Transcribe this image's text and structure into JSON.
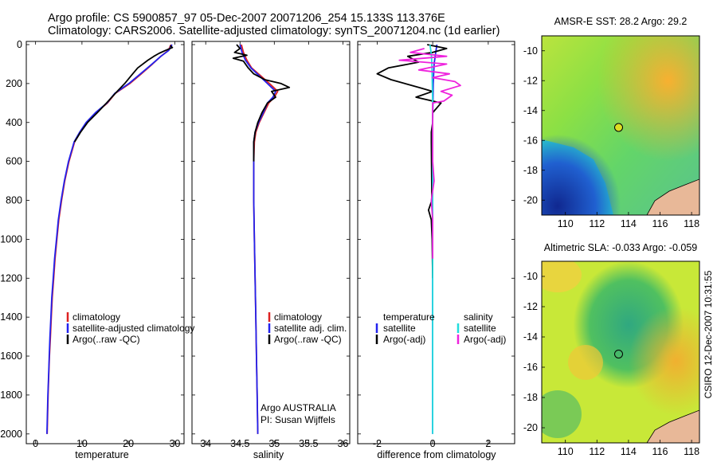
{
  "figure": {
    "title_line1": "Argo profile: CS 5900857_97 05-Dec-2007 20071206_254 15.133S 113.376E",
    "title_line2": "Climatology: CARS2006. Satellite-adjusted climatology: synTS_20071204.nc (1d earlier)",
    "side_label": "CSIRO 12-Dec-2007 10:31:55",
    "credit_line1": "Argo AUSTRALIA",
    "credit_line2": "PI: Susan Wijffels"
  },
  "colors": {
    "climatology": "#dd2222",
    "satellite": "#2222ee",
    "argo": "#000000",
    "sat_salinity": "#22dddd",
    "argo_salinity": "#ee22dd",
    "marker": "#dddd22",
    "land": "#e8b898"
  },
  "chart_data": [
    {
      "id": "temperature",
      "type": "line",
      "xlabel": "temperature",
      "ylabel": "",
      "xlim": [
        -2,
        32
      ],
      "ylim": [
        2050,
        0
      ],
      "xticks": [
        "0",
        "10",
        "20",
        "30"
      ],
      "xtick_values": [
        0,
        10,
        20,
        30
      ],
      "yticks": [
        "0",
        "200",
        "400",
        "600",
        "800",
        "1000",
        "1200",
        "1400",
        "1600",
        "1800",
        "2000"
      ],
      "ytick_values": [
        0,
        200,
        400,
        600,
        800,
        1000,
        1200,
        1400,
        1600,
        1800,
        2000
      ],
      "legend": [
        "climatology",
        "satellite-adjusted climatology",
        "Argo(..raw -QC)"
      ],
      "series": [
        {
          "name": "climatology",
          "color_key": "climatology",
          "points": [
            [
              29.2,
              0
            ],
            [
              28.6,
              30
            ],
            [
              27.0,
              60
            ],
            [
              25.2,
              100
            ],
            [
              22.8,
              150
            ],
            [
              20.3,
              200
            ],
            [
              17.2,
              250
            ],
            [
              15.5,
              300
            ],
            [
              13.0,
              350
            ],
            [
              11.0,
              400
            ],
            [
              9.6,
              450
            ],
            [
              8.4,
              500
            ],
            [
              7.2,
              600
            ],
            [
              6.3,
              700
            ],
            [
              5.6,
              800
            ],
            [
              5.0,
              900
            ],
            [
              4.6,
              1000
            ],
            [
              4.2,
              1100
            ],
            [
              3.9,
              1200
            ],
            [
              3.6,
              1300
            ],
            [
              3.4,
              1400
            ],
            [
              3.2,
              1500
            ],
            [
              3.0,
              1600
            ],
            [
              2.85,
              1700
            ],
            [
              2.7,
              1800
            ],
            [
              2.6,
              1900
            ],
            [
              2.5,
              2000
            ]
          ]
        },
        {
          "name": "satellite",
          "color_key": "satellite",
          "points": [
            [
              29.4,
              0
            ],
            [
              28.7,
              30
            ],
            [
              27.0,
              60
            ],
            [
              25.1,
              100
            ],
            [
              22.6,
              150
            ],
            [
              20.1,
              200
            ],
            [
              17.1,
              250
            ],
            [
              15.4,
              300
            ],
            [
              12.9,
              350
            ],
            [
              10.9,
              400
            ],
            [
              9.5,
              450
            ],
            [
              8.3,
              500
            ],
            [
              7.1,
              600
            ],
            [
              6.2,
              700
            ],
            [
              5.5,
              800
            ],
            [
              4.9,
              900
            ],
            [
              4.5,
              1000
            ],
            [
              4.1,
              1100
            ],
            [
              3.8,
              1200
            ],
            [
              3.5,
              1300
            ],
            [
              3.3,
              1400
            ],
            [
              3.1,
              1500
            ],
            [
              2.95,
              1600
            ],
            [
              2.8,
              1700
            ],
            [
              2.65,
              1800
            ],
            [
              2.55,
              1900
            ],
            [
              2.45,
              2000
            ]
          ]
        },
        {
          "name": "argo",
          "color_key": "argo",
          "points": [
            [
              29.0,
              5
            ],
            [
              29.5,
              15
            ],
            [
              28.0,
              30
            ],
            [
              26.6,
              45
            ],
            [
              25.5,
              60
            ],
            [
              24.2,
              80
            ],
            [
              22.0,
              120
            ],
            [
              20.6,
              160
            ],
            [
              19.2,
              200
            ],
            [
              17.2,
              250
            ],
            [
              15.3,
              300
            ],
            [
              13.3,
              350
            ],
            [
              11.2,
              400
            ],
            [
              9.7,
              450
            ],
            [
              8.4,
              500
            ]
          ]
        }
      ]
    },
    {
      "id": "salinity",
      "type": "line",
      "xlabel": "salinity",
      "xlim": [
        33.8,
        36.1
      ],
      "ylim": [
        2050,
        0
      ],
      "xticks": [
        "34",
        "34.5",
        "35",
        "35.5",
        "36"
      ],
      "xtick_values": [
        34,
        34.5,
        35,
        35.5,
        36
      ],
      "legend": [
        "climatology",
        "satellite adj. clim.",
        "Argo(..raw -QC)"
      ],
      "series": [
        {
          "name": "climatology",
          "color_key": "climatology",
          "points": [
            [
              34.52,
              0
            ],
            [
              34.55,
              40
            ],
            [
              34.6,
              80
            ],
            [
              34.67,
              120
            ],
            [
              34.8,
              160
            ],
            [
              34.93,
              200
            ],
            [
              35.05,
              240
            ],
            [
              35.0,
              270
            ],
            [
              34.92,
              300
            ],
            [
              34.85,
              350
            ],
            [
              34.78,
              400
            ],
            [
              34.73,
              450
            ],
            [
              34.71,
              500
            ],
            [
              34.7,
              600
            ],
            [
              34.7,
              800
            ],
            [
              34.71,
              1000
            ],
            [
              34.72,
              1200
            ],
            [
              34.73,
              1400
            ],
            [
              34.74,
              1600
            ],
            [
              34.75,
              1800
            ],
            [
              34.76,
              2000
            ]
          ]
        },
        {
          "name": "satellite",
          "color_key": "satellite",
          "points": [
            [
              34.5,
              0
            ],
            [
              34.53,
              40
            ],
            [
              34.58,
              80
            ],
            [
              34.66,
              120
            ],
            [
              34.78,
              160
            ],
            [
              34.9,
              200
            ],
            [
              35.02,
              240
            ],
            [
              34.98,
              270
            ],
            [
              34.9,
              300
            ],
            [
              34.84,
              350
            ],
            [
              34.77,
              400
            ],
            [
              34.72,
              450
            ],
            [
              34.7,
              500
            ],
            [
              34.7,
              600
            ],
            [
              34.7,
              800
            ],
            [
              34.71,
              1000
            ],
            [
              34.72,
              1200
            ],
            [
              34.73,
              1400
            ],
            [
              34.74,
              1600
            ],
            [
              34.75,
              1800
            ],
            [
              34.76,
              2000
            ]
          ]
        },
        {
          "name": "argo",
          "color_key": "argo",
          "points": [
            [
              34.45,
              0
            ],
            [
              34.5,
              20
            ],
            [
              34.42,
              40
            ],
            [
              34.6,
              55
            ],
            [
              34.4,
              70
            ],
            [
              34.55,
              85
            ],
            [
              34.62,
              120
            ],
            [
              34.7,
              150
            ],
            [
              34.86,
              180
            ],
            [
              35.1,
              200
            ],
            [
              35.22,
              220
            ],
            [
              34.96,
              240
            ],
            [
              35.02,
              270
            ],
            [
              34.9,
              300
            ],
            [
              34.82,
              350
            ],
            [
              34.76,
              400
            ],
            [
              34.72,
              450
            ],
            [
              34.7,
              500
            ],
            [
              34.7,
              600
            ]
          ]
        }
      ]
    },
    {
      "id": "difference",
      "type": "line",
      "xlabel": "difference from climatology",
      "xlim": [
        -2.7,
        2.95
      ],
      "ylim": [
        2050,
        0
      ],
      "xticks": [
        "-2",
        "0",
        "2"
      ],
      "xtick_values": [
        -2,
        0,
        2
      ],
      "legend_headers": [
        "temperature",
        "salinity"
      ],
      "legend_left": [
        "satellite",
        "Argo(-adj)"
      ],
      "legend_right": [
        "satellite",
        "Argo(-adj)"
      ],
      "series": [
        {
          "name": "temperature satellite",
          "color_key": "satellite",
          "points": [
            [
              0.15,
              0
            ],
            [
              0.1,
              50
            ],
            [
              0.05,
              100
            ],
            [
              0.02,
              200
            ],
            [
              0.0,
              400
            ],
            [
              0.0,
              2000
            ]
          ]
        },
        {
          "name": "temperature Argo(-adj)",
          "color_key": "argo",
          "points": [
            [
              -0.2,
              0
            ],
            [
              0.5,
              20
            ],
            [
              0.0,
              40
            ],
            [
              -0.9,
              60
            ],
            [
              -0.5,
              90
            ],
            [
              -1.6,
              120
            ],
            [
              -2.0,
              150
            ],
            [
              -1.5,
              180
            ],
            [
              -0.5,
              220
            ],
            [
              0.0,
              240
            ],
            [
              -0.6,
              270
            ],
            [
              0.3,
              300
            ],
            [
              0.0,
              350
            ],
            [
              0.0,
              400
            ],
            [
              -0.05,
              450
            ],
            [
              -0.05,
              500
            ],
            [
              -0.03,
              800
            ],
            [
              -0.15,
              850
            ],
            [
              -0.05,
              900
            ],
            [
              -0.02,
              1000
            ],
            [
              0.0,
              1200
            ]
          ]
        },
        {
          "name": "salinity satellite",
          "color_key": "sat_salinity",
          "points": [
            [
              -0.1,
              0
            ],
            [
              -0.05,
              50
            ],
            [
              -0.03,
              100
            ],
            [
              0.0,
              300
            ],
            [
              0.0,
              2000
            ]
          ]
        },
        {
          "name": "salinity Argo(-adj)",
          "color_key": "argo_salinity",
          "points": [
            [
              -0.3,
              20
            ],
            [
              -0.8,
              40
            ],
            [
              0.5,
              60
            ],
            [
              -1.2,
              80
            ],
            [
              0.5,
              100
            ],
            [
              -0.5,
              130
            ],
            [
              0.6,
              150
            ],
            [
              0.0,
              170
            ],
            [
              0.8,
              190
            ],
            [
              1.0,
              210
            ],
            [
              0.3,
              240
            ],
            [
              0.7,
              260
            ],
            [
              0.4,
              290
            ],
            [
              0.0,
              300
            ],
            [
              0.0,
              600
            ],
            [
              0.05,
              700
            ],
            [
              -0.05,
              800
            ],
            [
              0.0,
              900
            ],
            [
              0.0,
              1100
            ]
          ]
        }
      ]
    },
    {
      "id": "sst_map",
      "type": "heatmap",
      "title": "AMSR-E SST: 28.2 Argo: 29.2",
      "xlim": [
        108.5,
        118.5
      ],
      "ylim": [
        -21,
        -9
      ],
      "xticks": [
        "110",
        "112",
        "114",
        "116",
        "118"
      ],
      "xtick_values": [
        110,
        112,
        114,
        116,
        118
      ],
      "yticks": [
        "-10",
        "-12",
        "-14",
        "-16",
        "-18",
        "-20"
      ],
      "ytick_values": [
        -10,
        -12,
        -14,
        -16,
        -18,
        -20
      ],
      "marker": {
        "lon": 113.376,
        "lat": -15.133
      }
    },
    {
      "id": "sla_map",
      "type": "heatmap",
      "title": "Altimetric SLA: -0.033 Argo: -0.059",
      "xlim": [
        108.5,
        118.5
      ],
      "ylim": [
        -21,
        -9
      ],
      "xticks": [
        "110",
        "112",
        "114",
        "116",
        "118"
      ],
      "xtick_values": [
        110,
        112,
        114,
        116,
        118
      ],
      "yticks": [
        "-10",
        "-12",
        "-14",
        "-16",
        "-18",
        "-20"
      ],
      "ytick_values": [
        -10,
        -12,
        -14,
        -16,
        -18,
        -20
      ],
      "marker": {
        "lon": 113.376,
        "lat": -15.133
      }
    }
  ]
}
